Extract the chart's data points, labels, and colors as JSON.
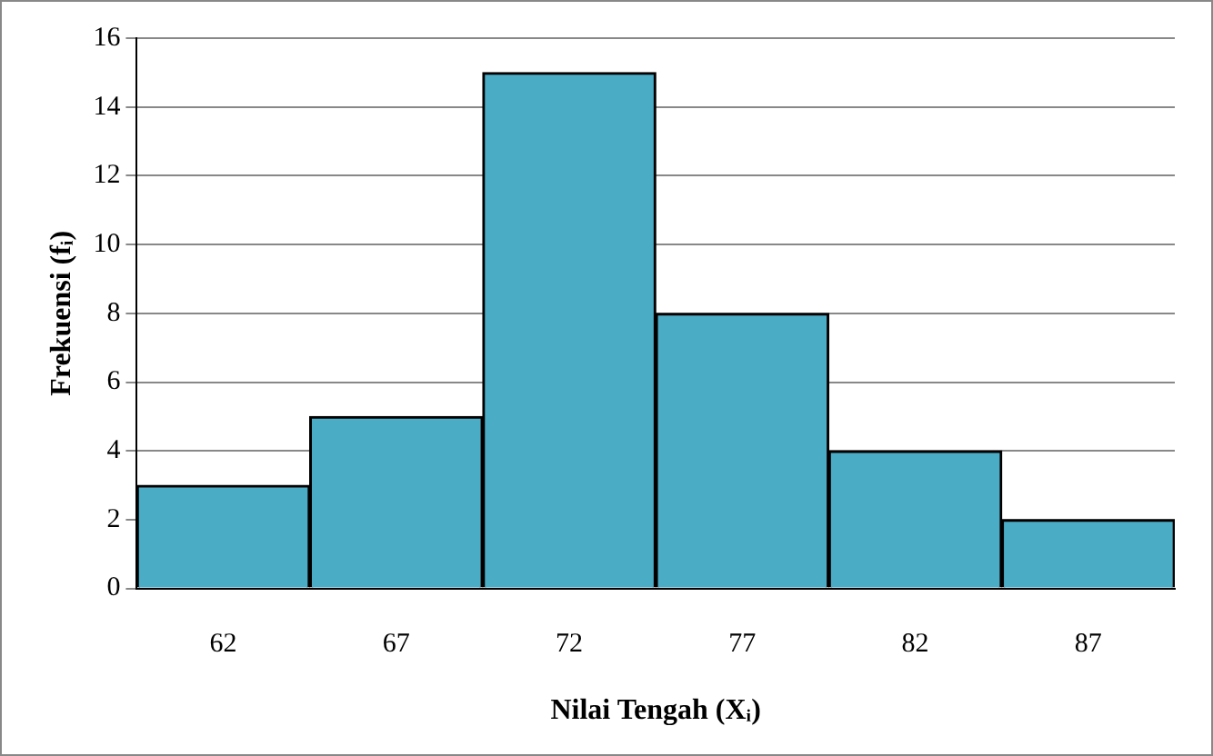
{
  "chart_data": {
    "type": "bar",
    "xlabel": "Nilai Tengah (Xᵢ)",
    "ylabel": "Frekuensi (fᵢ)",
    "categories": [
      "62",
      "67",
      "72",
      "77",
      "82",
      "87"
    ],
    "values": [
      3,
      5,
      15,
      8,
      4,
      2
    ],
    "color": "#4bacc6",
    "ylim": [
      0,
      16
    ],
    "yticks": [
      0,
      2,
      4,
      6,
      8,
      10,
      12,
      14,
      16
    ],
    "grid": "y",
    "legend": false
  }
}
